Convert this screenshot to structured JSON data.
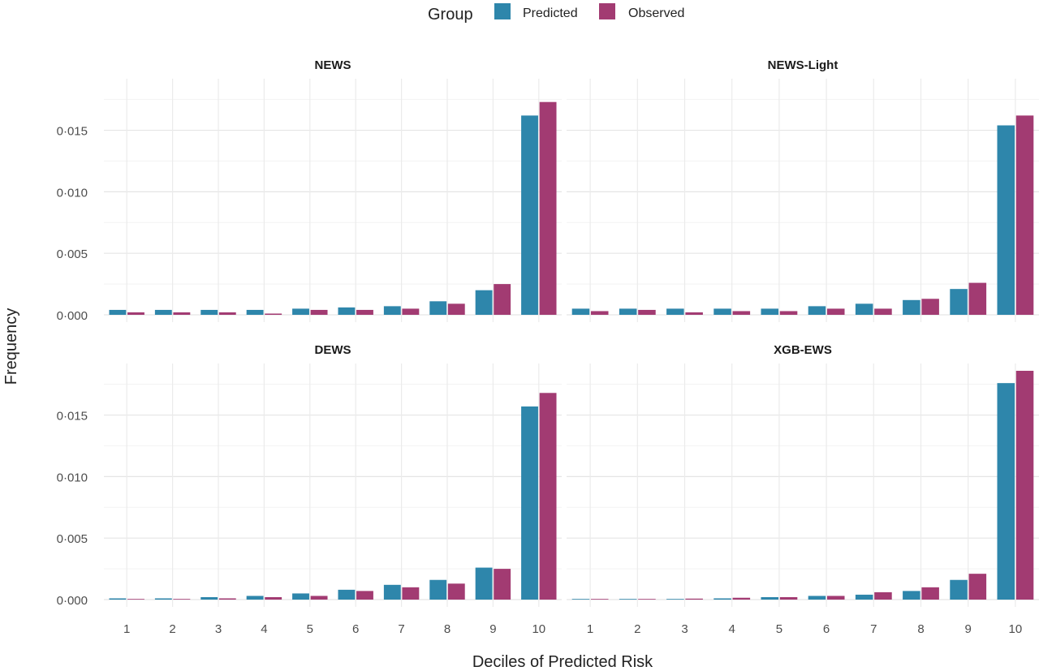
{
  "chart_data": {
    "type": "bar",
    "legend": {
      "title": "Group",
      "position": "top",
      "entries": [
        {
          "label": "Predicted",
          "color": "#2e86ab"
        },
        {
          "label": "Observed",
          "color": "#a23b72"
        }
      ]
    },
    "xlabel": "Deciles of Predicted Risk",
    "ylabel": "Frequency",
    "categories": [
      "1",
      "2",
      "3",
      "4",
      "5",
      "6",
      "7",
      "8",
      "9",
      "10"
    ],
    "yticks": [
      "0·000",
      "0·005",
      "0·010",
      "0·015"
    ],
    "ylim": [
      0,
      0.0186
    ],
    "grid": true,
    "panels": [
      {
        "title": "NEWS",
        "series": [
          {
            "name": "Predicted",
            "values": [
              0.0004,
              0.0004,
              0.0004,
              0.0004,
              0.0005,
              0.0006,
              0.0007,
              0.0011,
              0.002,
              0.0162
            ]
          },
          {
            "name": "Observed",
            "values": [
              0.0002,
              0.0002,
              0.0002,
              0.0001,
              0.0004,
              0.0004,
              0.0005,
              0.0009,
              0.0025,
              0.0173
            ]
          }
        ]
      },
      {
        "title": "NEWS-Light",
        "series": [
          {
            "name": "Predicted",
            "values": [
              0.0005,
              0.0005,
              0.0005,
              0.0005,
              0.0005,
              0.0007,
              0.0009,
              0.0012,
              0.0021,
              0.0154
            ]
          },
          {
            "name": "Observed",
            "values": [
              0.0003,
              0.0004,
              0.0002,
              0.0003,
              0.0003,
              0.0005,
              0.0005,
              0.0013,
              0.0026,
              0.0162
            ]
          }
        ]
      },
      {
        "title": "DEWS",
        "series": [
          {
            "name": "Predicted",
            "values": [
              0.0001,
              0.0001,
              0.0002,
              0.0003,
              0.0005,
              0.0008,
              0.0012,
              0.0016,
              0.0026,
              0.0157
            ]
          },
          {
            "name": "Observed",
            "values": [
              5e-05,
              5e-05,
              0.0001,
              0.0002,
              0.0003,
              0.0007,
              0.001,
              0.0013,
              0.0025,
              0.0168
            ]
          }
        ]
      },
      {
        "title": "XGB-EWS",
        "series": [
          {
            "name": "Predicted",
            "values": [
              2e-05,
              3e-05,
              5e-05,
              0.0001,
              0.0002,
              0.0003,
              0.0004,
              0.0007,
              0.0016,
              0.0176
            ]
          },
          {
            "name": "Observed",
            "values": [
              3e-05,
              5e-05,
              8e-05,
              0.00015,
              0.0002,
              0.0003,
              0.0006,
              0.001,
              0.0021,
              0.0186
            ]
          }
        ]
      }
    ]
  }
}
